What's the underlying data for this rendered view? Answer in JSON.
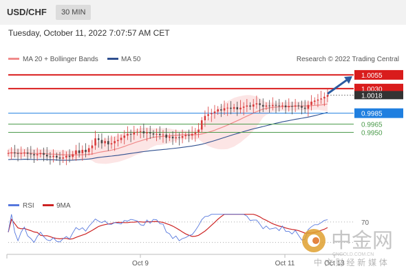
{
  "header": {
    "symbol": "USD/CHF",
    "timeframe": "30 MIN"
  },
  "timestamp": "Tuesday, October 11, 2022 7:07:57 AM CET",
  "legend": {
    "bb_label": "MA 20 + Bollinger Bands",
    "ma50_label": "MA 50",
    "rsi_label": "RSI",
    "rsi_ma_label": "9MA",
    "bb_color": "#f08a8a",
    "ma50_color": "#2f4f8f",
    "rsi_color": "#5577dd",
    "rsi_ma_color": "#cc2222"
  },
  "credit": "Research © 2022 Trading Central",
  "watermark": {
    "brand_cn": "中金网",
    "brand_en": "CNGOLD.COM.CN",
    "tagline": "中 文 财 经 新 媒 体"
  },
  "colors": {
    "resistance": "#d91c1c",
    "pivot": "#1f7fe0",
    "support": "#4a9a4a",
    "candle_up": "#d93a3a",
    "candle_down": "#444444",
    "arrow": "#2a5aa0"
  },
  "chart_data": {
    "type": "candlestick",
    "title": "USD/CHF 30 MIN",
    "ylim": [
      0.9845,
      1.007
    ],
    "x_tick_labels": [
      "Oct 9",
      "Oct 11",
      "Oct 13"
    ],
    "levels": [
      {
        "value": 1.0055,
        "label": "1.0055",
        "kind": "resistance"
      },
      {
        "value": 1.003,
        "label": "1.0030",
        "kind": "resistance"
      },
      {
        "value": 1.0018,
        "label": "1.0018",
        "kind": "last"
      },
      {
        "value": 0.9985,
        "label": "0.9985",
        "kind": "pivot"
      },
      {
        "value": 0.9965,
        "label": "0.9965",
        "kind": "support"
      },
      {
        "value": 0.995,
        "label": "0.9950",
        "kind": "support"
      }
    ],
    "close": [
      0.9912,
      0.9913,
      0.9912,
      0.9911,
      0.9912,
      0.9913,
      0.9911,
      0.991,
      0.9908,
      0.991,
      0.9912,
      0.9909,
      0.9906,
      0.9905,
      0.9907,
      0.9904,
      0.9902,
      0.9904,
      0.9907,
      0.9905,
      0.991,
      0.9917,
      0.9912,
      0.9918,
      0.9914,
      0.9921,
      0.9926,
      0.9939,
      0.9936,
      0.993,
      0.9934,
      0.9928,
      0.993,
      0.9934,
      0.9936,
      0.994,
      0.9944,
      0.9947,
      0.9946,
      0.995,
      0.9951,
      0.9952,
      0.9948,
      0.995,
      0.9948,
      0.9946,
      0.9947,
      0.9945,
      0.9946,
      0.994,
      0.9942,
      0.9939,
      0.9941,
      0.994,
      0.9943,
      0.9945,
      0.9944,
      0.9947,
      0.995,
      0.9955,
      0.9972,
      0.998,
      0.9983,
      0.9985,
      0.9988,
      0.9992,
      0.999,
      0.9994,
      0.9995,
      0.9993,
      0.9996,
      0.9992,
      0.9995,
      0.9997,
      0.9999,
      0.9997,
      1.0001,
      1.0003,
      1.0,
      0.9997,
      0.9999,
      0.9998,
      1.0,
      0.9999,
      0.9998,
      0.9999,
      0.9996,
      0.9998,
      0.9997,
      0.9999,
      0.9998,
      0.9995,
      0.9993,
      1.0,
      1.0006,
      1.0008,
      1.001,
      1.0012,
      1.0015,
      1.0018
    ],
    "rsi_levels": [
      70,
      30
    ],
    "rsi_visible_labels": [
      "70"
    ]
  }
}
